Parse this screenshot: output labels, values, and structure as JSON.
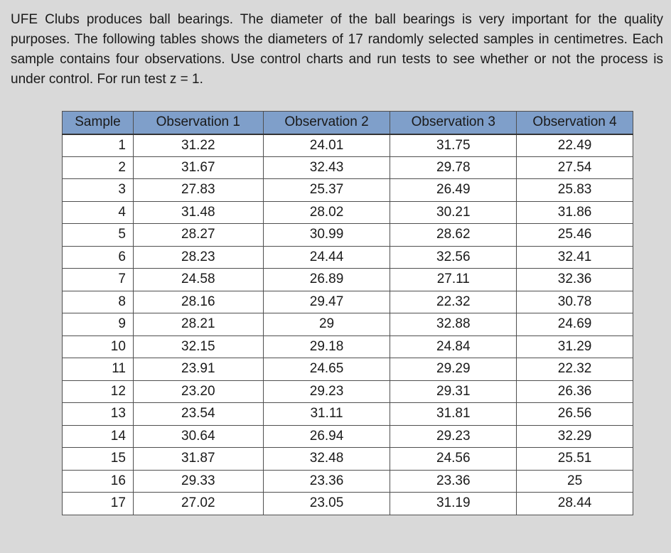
{
  "problem_text": "UFE Clubs produces ball bearings. The diameter of the ball bearings is very important for the quality purposes. The following tables shows the diameters of 17 randomly selected samples in centimetres. Each sample contains four observations. Use control charts and run tests to see whether or not the process is under control. For run test z = 1.",
  "table": {
    "header_color": "#7f9fca",
    "columns": [
      "Sample",
      "Observation 1",
      "Observation 2",
      "Observation 3",
      "Observation 4"
    ],
    "rows": [
      [
        "1",
        "31.22",
        "24.01",
        "31.75",
        "22.49"
      ],
      [
        "2",
        "31.67",
        "32.43",
        "29.78",
        "27.54"
      ],
      [
        "3",
        "27.83",
        "25.37",
        "26.49",
        "25.83"
      ],
      [
        "4",
        "31.48",
        "28.02",
        "30.21",
        "31.86"
      ],
      [
        "5",
        "28.27",
        "30.99",
        "28.62",
        "25.46"
      ],
      [
        "6",
        "28.23",
        "24.44",
        "32.56",
        "32.41"
      ],
      [
        "7",
        "24.58",
        "26.89",
        "27.11",
        "32.36"
      ],
      [
        "8",
        "28.16",
        "29.47",
        "22.32",
        "30.78"
      ],
      [
        "9",
        "28.21",
        "29",
        "32.88",
        "24.69"
      ],
      [
        "10",
        "32.15",
        "29.18",
        "24.84",
        "31.29"
      ],
      [
        "11",
        "23.91",
        "24.65",
        "29.29",
        "22.32"
      ],
      [
        "12",
        "23.20",
        "29.23",
        "29.31",
        "26.36"
      ],
      [
        "13",
        "23.54",
        "31.11",
        "31.81",
        "26.56"
      ],
      [
        "14",
        "30.64",
        "26.94",
        "29.23",
        "32.29"
      ],
      [
        "15",
        "31.87",
        "32.48",
        "24.56",
        "25.51"
      ],
      [
        "16",
        "29.33",
        "23.36",
        "23.36",
        "25"
      ],
      [
        "17",
        "27.02",
        "23.05",
        "31.19",
        "28.44"
      ]
    ]
  }
}
